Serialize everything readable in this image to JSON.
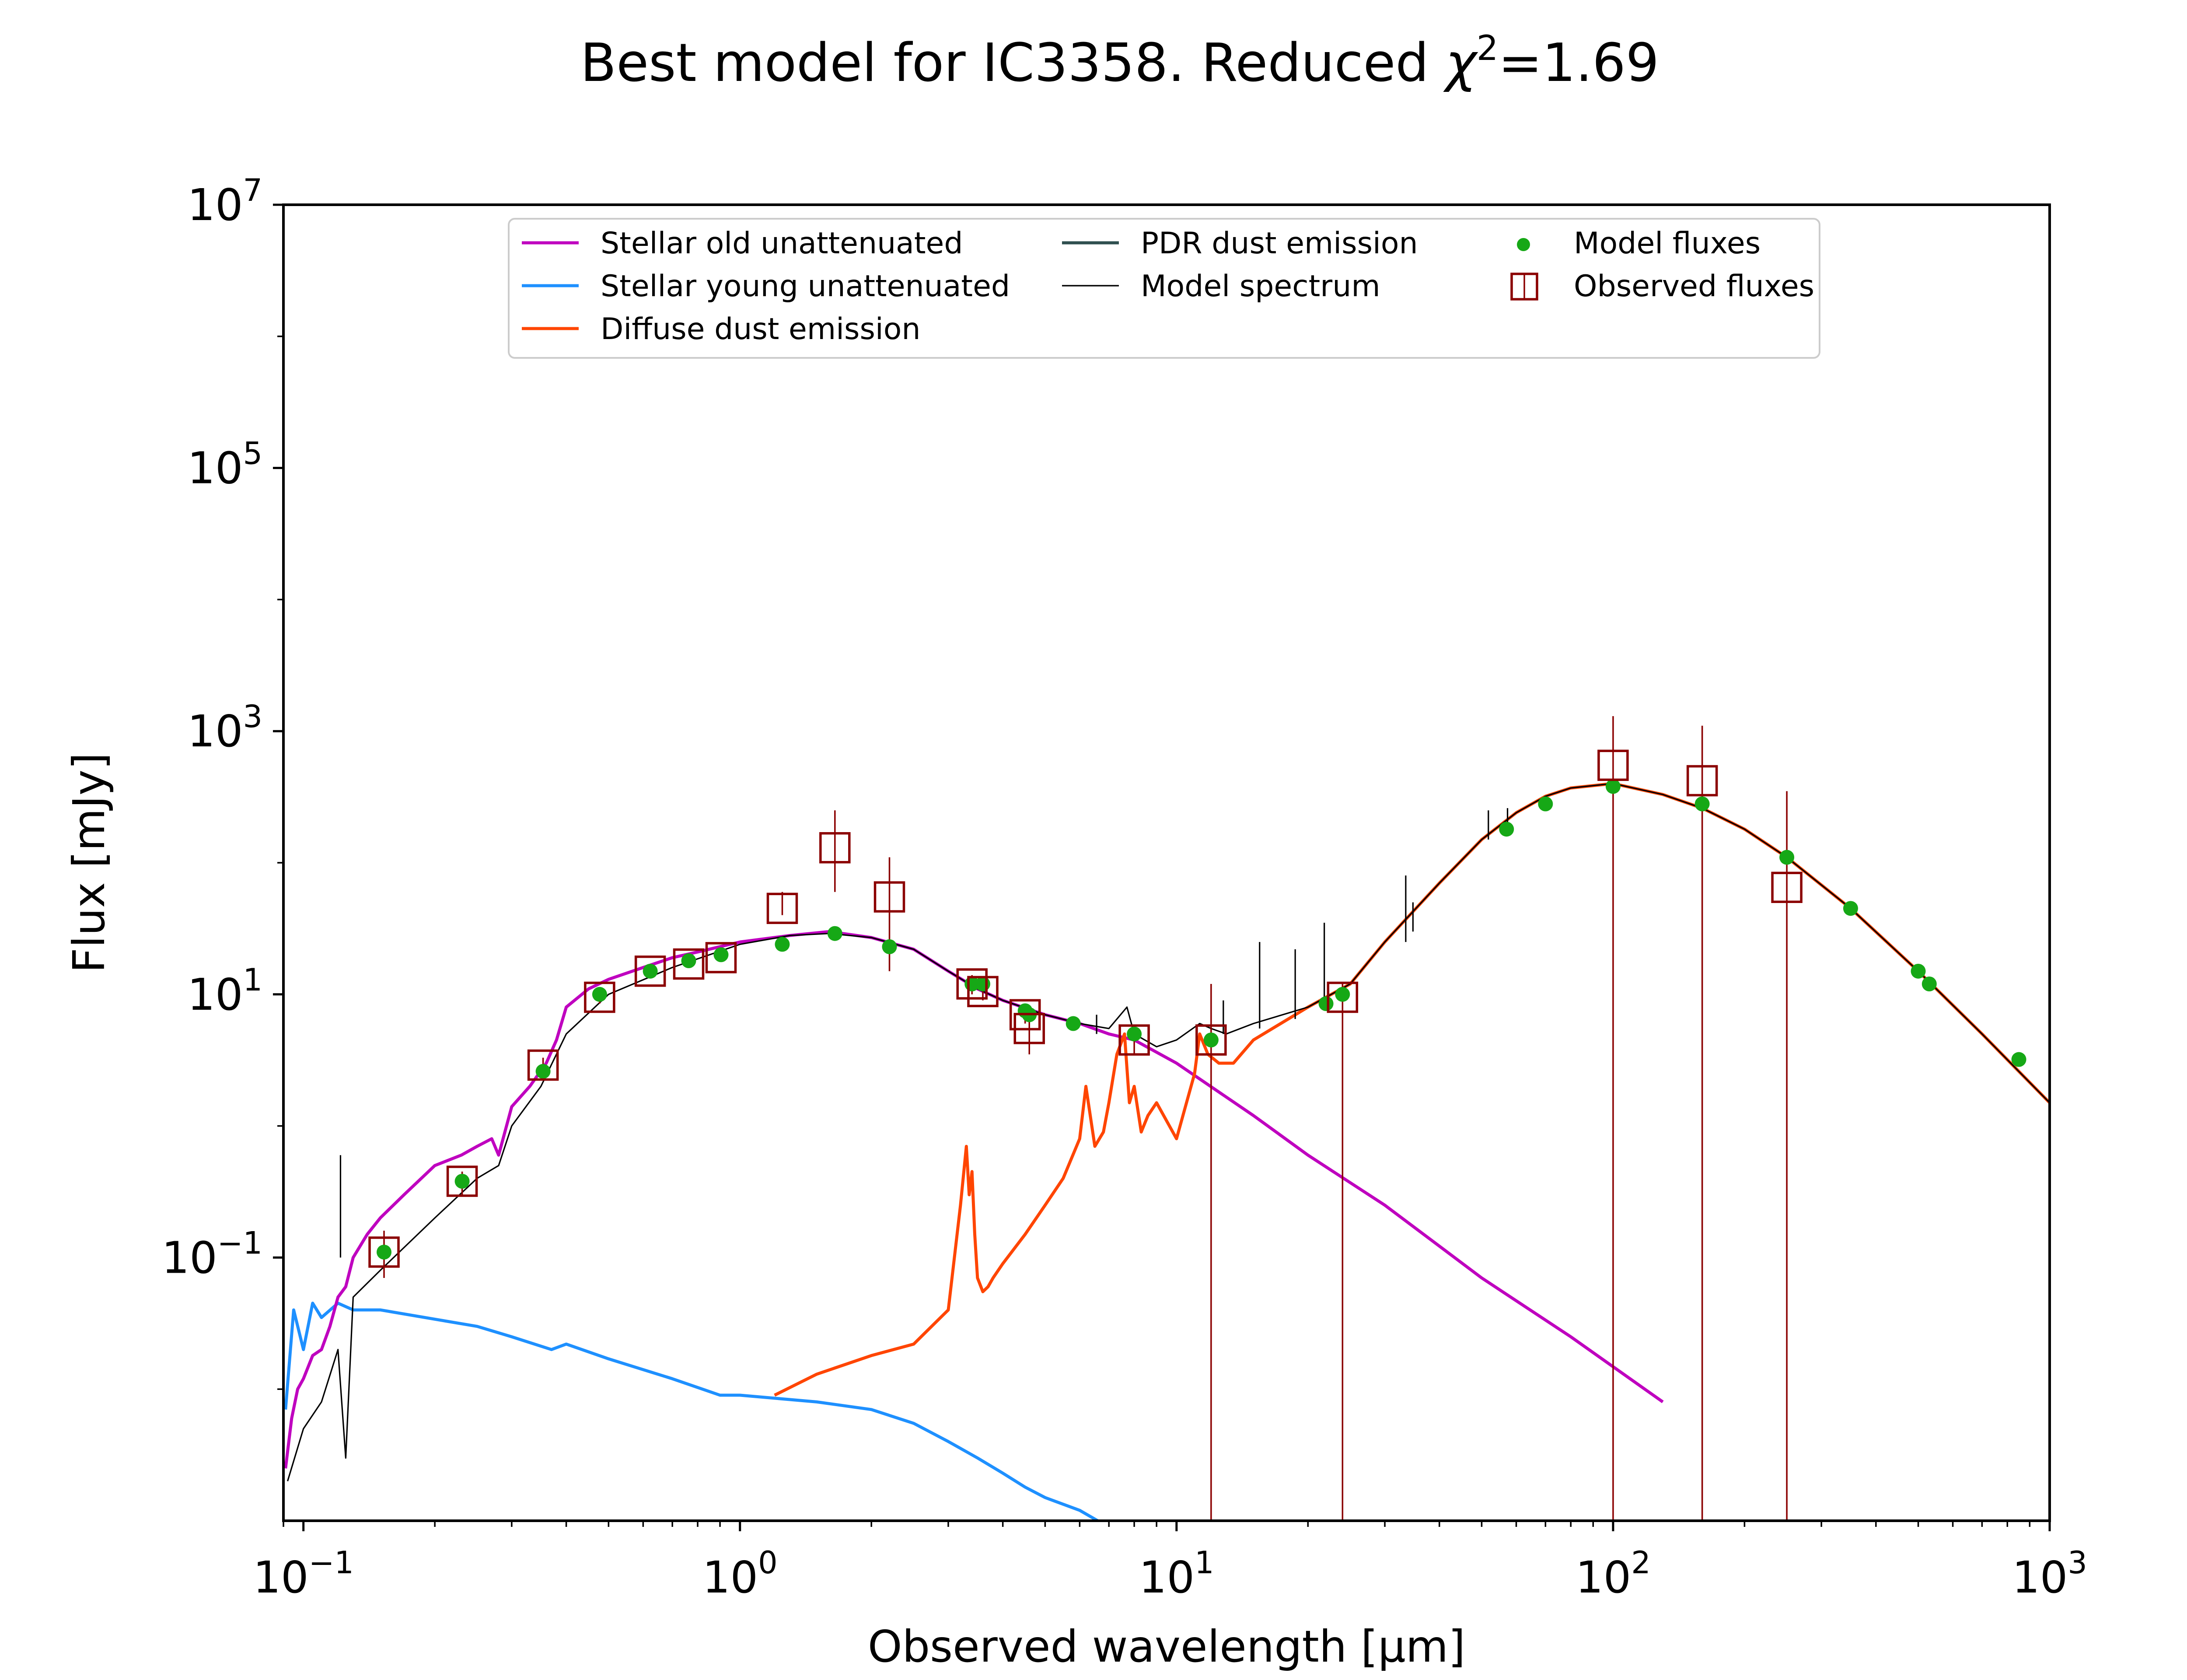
{
  "chart_data": {
    "type": "line",
    "title": "Best model for IC3358. Reduced",
    "title_chi": "χ",
    "title_sup": "2",
    "title_value": "=1.69",
    "xlabel": "Observed wavelength [μm]",
    "ylabel": "Flux [mJy]",
    "x_scale": "log",
    "y_scale": "log",
    "xlim": [
      0.09,
      1000
    ],
    "ylim": [
      0.001,
      10000000
    ],
    "x_ticks": [
      {
        "value": 0.1,
        "base": "10",
        "exp": "−1"
      },
      {
        "value": 1,
        "base": "10",
        "exp": "0"
      },
      {
        "value": 10,
        "base": "10",
        "exp": "1"
      },
      {
        "value": 100,
        "base": "10",
        "exp": "2"
      },
      {
        "value": 1000,
        "base": "10",
        "exp": "3"
      }
    ],
    "y_ticks": [
      {
        "value": 0.1,
        "base": "10",
        "exp": "−1"
      },
      {
        "value": 10,
        "base": "10",
        "exp": "1"
      },
      {
        "value": 1000,
        "base": "10",
        "exp": "3"
      },
      {
        "value": 100000,
        "base": "10",
        "exp": "5"
      },
      {
        "value": 10000000,
        "base": "10",
        "exp": "7"
      }
    ],
    "grid": false,
    "legend_position": "top-center",
    "legend": [
      {
        "label": "Stellar old unattenuated",
        "kind": "line",
        "color": "#BF00BF"
      },
      {
        "label": "Stellar young unattenuated",
        "kind": "line",
        "color": "#1E90FF"
      },
      {
        "label": "Diffuse dust emission",
        "kind": "line",
        "color": "#FF4500"
      },
      {
        "label": "PDR dust emission",
        "kind": "line",
        "color": "#2F4F4F"
      },
      {
        "label": "Model spectrum",
        "kind": "thinline",
        "color": "#000000"
      },
      {
        "label": "Model fluxes",
        "kind": "dot",
        "color": "#16A816"
      },
      {
        "label": "Observed fluxes",
        "kind": "square",
        "color": "#8B0000"
      }
    ],
    "series": [
      {
        "name": "Stellar old unattenuated",
        "color": "#BF00BF",
        "x": [
          0.091,
          0.094,
          0.097,
          0.1,
          0.105,
          0.11,
          0.115,
          0.12,
          0.125,
          0.13,
          0.14,
          0.15,
          0.17,
          0.2,
          0.23,
          0.25,
          0.27,
          0.28,
          0.3,
          0.33,
          0.36,
          0.38,
          0.4,
          0.45,
          0.5,
          0.6,
          0.7,
          0.8,
          1.0,
          1.3,
          1.6,
          2.0,
          2.5,
          3.0,
          3.5,
          4.0,
          5.0,
          6.0,
          7.0,
          8.0,
          10,
          15,
          20,
          30,
          50,
          80,
          130
        ],
        "y": [
          0.0025,
          0.006,
          0.01,
          0.012,
          0.018,
          0.02,
          0.03,
          0.05,
          0.06,
          0.1,
          0.15,
          0.2,
          0.3,
          0.5,
          0.6,
          0.7,
          0.8,
          0.6,
          1.4,
          2.0,
          3.0,
          4.5,
          8.0,
          11,
          13,
          16,
          19,
          21,
          25,
          28,
          30,
          27,
          22,
          15,
          11,
          9,
          7,
          6,
          5,
          4.5,
          3,
          1.2,
          0.6,
          0.25,
          0.07,
          0.025,
          0.008
        ]
      },
      {
        "name": "Stellar young unattenuated",
        "color": "#1E90FF",
        "x": [
          0.091,
          0.095,
          0.1,
          0.105,
          0.11,
          0.12,
          0.13,
          0.15,
          0.2,
          0.25,
          0.3,
          0.37,
          0.4,
          0.5,
          0.7,
          0.9,
          1.0,
          1.5,
          2.0,
          2.5,
          3.0,
          3.5,
          4.0,
          4.5,
          5.0,
          6.0,
          6.6
        ],
        "y": [
          0.007,
          0.04,
          0.02,
          0.045,
          0.035,
          0.045,
          0.04,
          0.04,
          0.034,
          0.03,
          0.025,
          0.02,
          0.022,
          0.017,
          0.012,
          0.009,
          0.009,
          0.008,
          0.007,
          0.0055,
          0.004,
          0.003,
          0.0023,
          0.0018,
          0.0015,
          0.0012,
          0.001
        ]
      },
      {
        "name": "Diffuse dust emission",
        "color": "#FF4500",
        "x": [
          1.2,
          1.5,
          2.0,
          2.5,
          3.0,
          3.2,
          3.3,
          3.35,
          3.4,
          3.45,
          3.5,
          3.6,
          3.7,
          3.8,
          4.0,
          4.5,
          5.0,
          5.5,
          6.0,
          6.2,
          6.5,
          6.8,
          7.0,
          7.3,
          7.6,
          7.8,
          8.0,
          8.3,
          8.6,
          9.0,
          10.0,
          11.0,
          11.3,
          11.8,
          12.5,
          13.5,
          15,
          20,
          25,
          30,
          40,
          50,
          60,
          70,
          80,
          100,
          130,
          160,
          200,
          250,
          350,
          500,
          700,
          1000
        ],
        "y": [
          0.009,
          0.013,
          0.018,
          0.022,
          0.04,
          0.25,
          0.7,
          0.3,
          0.45,
          0.15,
          0.07,
          0.055,
          0.06,
          0.07,
          0.09,
          0.15,
          0.25,
          0.4,
          0.8,
          2.0,
          0.7,
          0.9,
          1.5,
          3.5,
          5.0,
          1.5,
          2.0,
          0.9,
          1.2,
          1.5,
          0.8,
          2.5,
          5.0,
          3.5,
          3.0,
          3.0,
          4.5,
          8,
          12,
          25,
          70,
          150,
          240,
          320,
          370,
          400,
          330,
          260,
          180,
          110,
          45,
          15,
          5,
          1.5
        ]
      },
      {
        "name": "Model spectrum",
        "color": "#000000",
        "x": [
          0.092,
          0.1,
          0.11,
          0.12,
          0.125,
          0.13,
          0.15,
          0.2,
          0.25,
          0.28,
          0.3,
          0.35,
          0.4,
          0.5,
          0.7,
          1.0,
          1.3,
          1.6,
          2.0,
          2.5,
          3.0,
          3.5,
          4.0,
          5.0,
          6.0,
          7.0,
          7.7,
          8.0,
          9.0,
          10.0,
          11.3,
          12.0,
          13,
          15,
          20,
          25,
          30,
          40,
          50,
          60,
          70,
          80,
          100,
          130,
          160,
          200,
          250,
          350,
          500,
          700,
          1000
        ],
        "y": [
          0.002,
          0.005,
          0.008,
          0.02,
          0.003,
          0.05,
          0.08,
          0.2,
          0.4,
          0.5,
          1.0,
          2.0,
          5.0,
          10,
          16,
          24,
          28,
          29,
          27,
          22,
          15,
          11,
          9,
          7,
          6,
          5.5,
          8,
          5,
          4,
          4.5,
          6,
          5.5,
          5,
          6,
          8,
          12,
          25,
          70,
          150,
          240,
          320,
          370,
          400,
          330,
          260,
          180,
          110,
          45,
          15,
          5,
          1.5
        ]
      }
    ],
    "emission_lines": [
      {
        "x": 0.1216,
        "y0": 0.1,
        "y1": 0.6
      },
      {
        "x": 6.56,
        "y0": 5.0,
        "y1": 7.0
      },
      {
        "x": 12.8,
        "y0": 5.0,
        "y1": 9.0
      },
      {
        "x": 15.5,
        "y0": 5.5,
        "y1": 25
      },
      {
        "x": 18.7,
        "y0": 6.5,
        "y1": 22
      },
      {
        "x": 21.8,
        "y0": 8.0,
        "y1": 35
      },
      {
        "x": 33.5,
        "y0": 25,
        "y1": 80
      },
      {
        "x": 34.8,
        "y0": 30,
        "y1": 50
      },
      {
        "x": 51.8,
        "y0": 150,
        "y1": 250
      },
      {
        "x": 57.3,
        "y0": 180,
        "y1": 260
      }
    ],
    "model_fluxes": {
      "x": [
        0.153,
        0.231,
        0.354,
        0.477,
        0.623,
        0.763,
        0.905,
        1.25,
        1.65,
        2.2,
        3.4,
        3.6,
        4.5,
        4.6,
        5.8,
        8.0,
        12,
        22,
        24,
        57,
        70,
        100,
        160,
        250,
        350,
        500,
        530,
        850
      ],
      "y": [
        0.11,
        0.38,
        2.6,
        10,
        15,
        18,
        20,
        24,
        29,
        23,
        12,
        12,
        7.5,
        7.0,
        6.0,
        5.0,
        4.5,
        8.5,
        10,
        180,
        280,
        380,
        280,
        110,
        45,
        15,
        12,
        3.2
      ]
    },
    "observed_fluxes": {
      "x": [
        0.153,
        0.231,
        0.354,
        0.477,
        0.623,
        0.763,
        0.905,
        1.25,
        1.65,
        2.2,
        3.4,
        3.6,
        4.5,
        4.6,
        8.0,
        12,
        24,
        100,
        160,
        250
      ],
      "y": [
        0.11,
        0.38,
        2.9,
        9.5,
        15,
        17,
        19,
        45,
        130,
        55,
        12,
        10.5,
        7,
        5.5,
        4.5,
        4.5,
        9.5,
        550,
        420,
        65
      ],
      "err_low": [
        0.07,
        0.3,
        2.5,
        8.5,
        14,
        16,
        18,
        40,
        60,
        15,
        10,
        9,
        6,
        3.5,
        3.5,
        0.001,
        0.001,
        0.001,
        0.001,
        0.001
      ],
      "err_high": [
        0.16,
        0.45,
        3.3,
        10.5,
        16,
        18,
        20,
        60,
        250,
        110,
        14,
        12,
        8,
        7.5,
        5.5,
        12,
        12,
        1300,
        1100,
        350
      ]
    }
  }
}
